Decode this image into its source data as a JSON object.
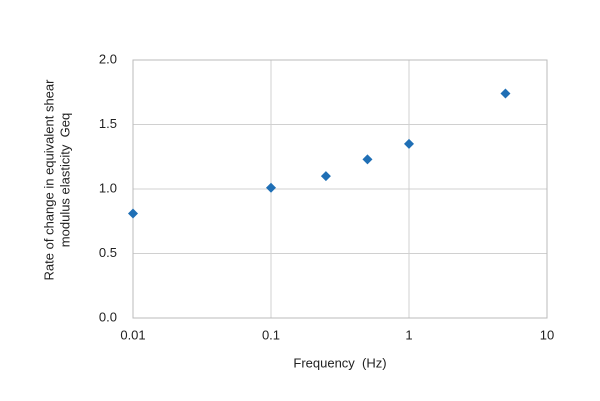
{
  "chart_data": {
    "type": "scatter",
    "x": [
      0.01,
      0.1,
      0.25,
      0.5,
      1,
      5
    ],
    "values": [
      0.81,
      1.01,
      1.1,
      1.23,
      1.35,
      1.74
    ],
    "color": "#1f6fb5",
    "xscale": "log",
    "xlim": [
      0.01,
      10
    ],
    "xticks": [
      0.01,
      0.1,
      1,
      10
    ],
    "ylim": [
      0,
      2
    ],
    "yticks": [
      {
        "value": 0,
        "label": "0.0"
      },
      {
        "value": 0.5,
        "label": "0.5"
      },
      {
        "value": 1,
        "label": "1.0"
      },
      {
        "value": 1.5,
        "label": "1.5"
      },
      {
        "value": 2,
        "label": "2.0"
      }
    ],
    "grid": true,
    "xlabel": "Frequency  (Hz)",
    "ylabel": [
      "Rate of change in equivalent shear",
      "modulus elasticity  Geq"
    ]
  }
}
